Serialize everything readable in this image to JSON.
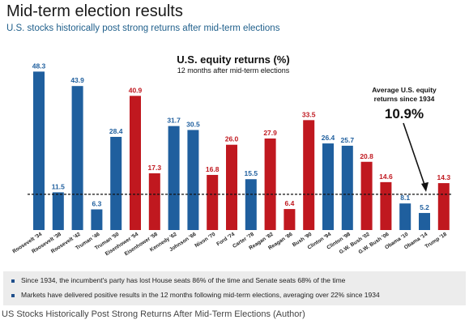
{
  "header": {
    "title": "Mid-term election results",
    "subtitle": "U.S. stocks historically post strong returns after mid-term elections"
  },
  "annotation": {
    "label_line1": "Average U.S. equity",
    "label_line2": "returns since 1934",
    "value_text": "10.9%"
  },
  "notes": [
    "Since 1934, the incumbent's party has lost House seats 86% of the time and Senate seats 68% of the time",
    "Markets have delivered positive results in the 12 months following mid-term elections, averaging over 22% since 1934"
  ],
  "caption": "US Stocks Historically Post Strong Returns After Mid-Term Elections (Author)",
  "colors": {
    "democrat": "#1f5f9e",
    "republican": "#c0181f"
  },
  "chart_data": {
    "type": "bar",
    "title": "U.S. equity returns (%)",
    "subtitle": "12 months after mid-term elections",
    "categories": [
      "Roosevelt '34",
      "Roosevelt '38",
      "Roosevelt '42",
      "Truman '46",
      "Truman '50",
      "Eisenhower '54",
      "Eisenhower '58",
      "Kennedy '62",
      "Johnson '66",
      "Nixon '70",
      "Ford '74",
      "Carter '78",
      "Reagan '82",
      "Reagan '86",
      "Bush '90",
      "Clinton '94",
      "Clinton '98",
      "G.W. Bush '02",
      "G.W. Bush '06",
      "Obama '10",
      "Obama '14",
      "Trump '18"
    ],
    "values": [
      48.3,
      11.5,
      43.9,
      6.3,
      28.4,
      40.9,
      17.3,
      31.7,
      30.5,
      16.8,
      26.0,
      15.5,
      27.9,
      6.4,
      33.5,
      26.4,
      25.7,
      20.8,
      14.6,
      8.1,
      5.2,
      14.3
    ],
    "value_labels": [
      "48.3",
      "11.5",
      "43.9",
      "6.3",
      "28.4",
      "40.9",
      "17.3",
      "31.7",
      "30.5",
      "16.8",
      "26.0",
      "15.5",
      "27.9",
      "6.4",
      "33.5",
      "26.4",
      "25.7",
      "20.8",
      "14.6",
      "8.1",
      "5.2",
      "14.3"
    ],
    "party": [
      "D",
      "D",
      "D",
      "D",
      "D",
      "R",
      "R",
      "D",
      "D",
      "R",
      "R",
      "D",
      "R",
      "R",
      "R",
      "D",
      "D",
      "R",
      "R",
      "D",
      "D",
      "R"
    ],
    "average": 10.9,
    "average_line": "dashed",
    "ylim": [
      0,
      52
    ],
    "grid": false,
    "legend": "none"
  }
}
